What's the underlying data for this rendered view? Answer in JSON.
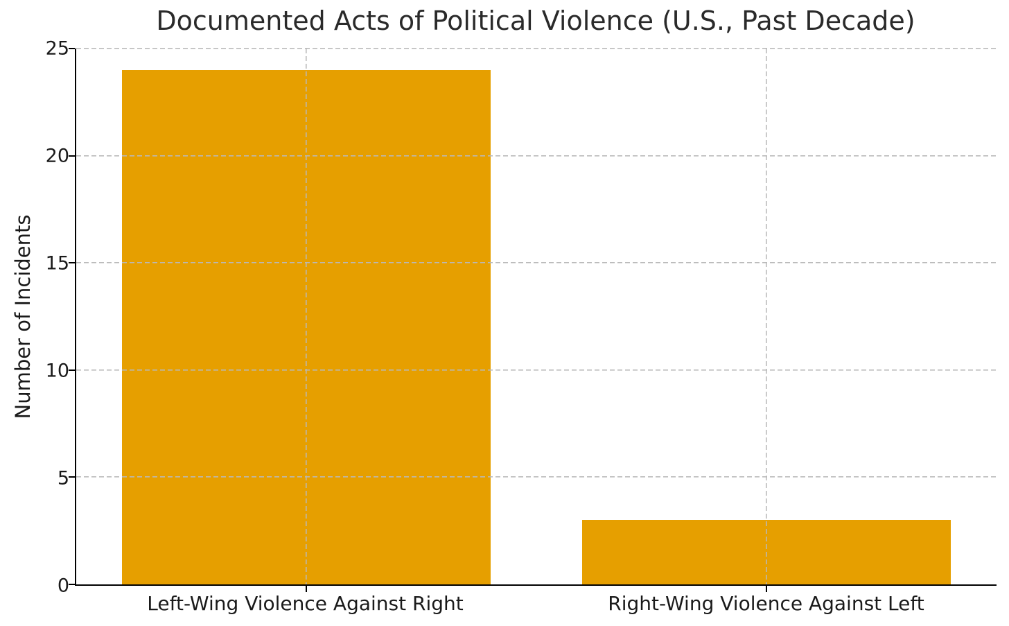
{
  "chart_data": {
    "type": "bar",
    "title": "Documented Acts of Political Violence (U.S., Past Decade)",
    "categories": [
      "Left-Wing Violence Against Right",
      "Right-Wing Violence Against Left"
    ],
    "values": [
      24,
      3
    ],
    "xlabel": "",
    "ylabel": "Number of Incidents",
    "ylim": [
      0,
      25
    ],
    "yticks": [
      0,
      5,
      10,
      15,
      20,
      25
    ],
    "bar_color": "#E69F00",
    "bar_width_fraction": 0.8,
    "grid": true,
    "grid_color": "#b9b9b9",
    "grid_style": "dashed",
    "grid_on_top": true,
    "legend": "none",
    "spines": [
      "left",
      "bottom"
    ]
  }
}
